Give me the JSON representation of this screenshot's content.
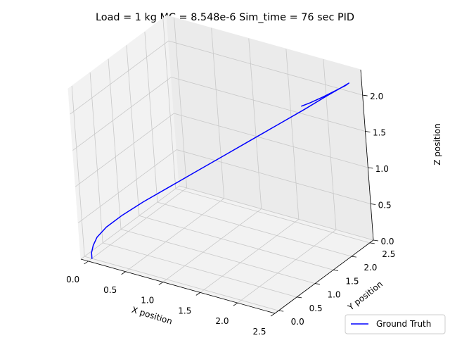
{
  "chart_data": {
    "type": "line3d",
    "title": "Load = 1 kg MC = 8.548e-6 Sim_time = 76 sec PID",
    "xlabel": "X position",
    "ylabel": "Y position",
    "zlabel": "Z position",
    "xlim": [
      -0.1,
      2.5
    ],
    "ylim": [
      -0.1,
      2.6
    ],
    "zlim": [
      0.0,
      2.35
    ],
    "xticks": [
      "0.0",
      "0.5",
      "1.0",
      "1.5",
      "2.0",
      "2.5"
    ],
    "yticks": [
      "0.0",
      "0.5",
      "1.0",
      "1.5",
      "2.0",
      "2.5"
    ],
    "zticks": [
      "0.0",
      "0.5",
      "1.0",
      "1.5",
      "2.0"
    ],
    "grid": true,
    "legend_position": "lower-right",
    "series": [
      {
        "name": "Ground Truth",
        "color": "#0000ff",
        "points": [
          [
            0.0,
            0.0,
            0.0
          ],
          [
            0.0,
            0.0,
            0.08
          ],
          [
            0.02,
            0.02,
            0.18
          ],
          [
            0.06,
            0.06,
            0.29
          ],
          [
            0.15,
            0.15,
            0.42
          ],
          [
            0.3,
            0.3,
            0.57
          ],
          [
            0.5,
            0.5,
            0.74
          ],
          [
            0.75,
            0.75,
            0.93
          ],
          [
            1.0,
            1.0,
            1.12
          ],
          [
            1.25,
            1.25,
            1.31
          ],
          [
            1.5,
            1.5,
            1.5
          ],
          [
            1.75,
            1.75,
            1.69
          ],
          [
            2.0,
            2.0,
            1.88
          ],
          [
            2.2,
            2.2,
            2.04
          ],
          [
            2.37,
            2.37,
            2.17
          ],
          [
            2.42,
            2.42,
            2.21
          ],
          [
            2.39,
            2.39,
            2.18
          ],
          [
            2.3,
            2.3,
            2.12
          ],
          [
            2.18,
            2.18,
            2.04
          ],
          [
            2.06,
            2.06,
            1.97
          ],
          [
            1.98,
            1.98,
            1.93
          ]
        ]
      }
    ]
  }
}
